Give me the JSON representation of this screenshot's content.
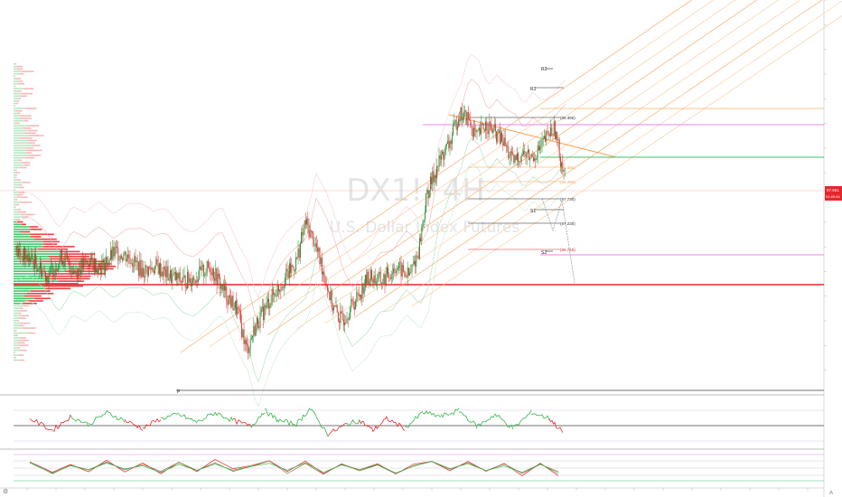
{
  "watermark": {
    "ticker": "DX1!, 4H",
    "name": "U.S. Dollar Index Futures"
  },
  "colors": {
    "up": "#1a8a2a",
    "down": "#e8262b",
    "channel": "#f7a35c",
    "magenta": "#e58ae6",
    "green_line": "#35c46a",
    "red_line": "#e5262b",
    "dark_line": "#222222"
  },
  "levels": {
    "ma1": "(99.365)",
    "ma2": "(98.555)",
    "ma3": "(98.280)",
    "ma4": "(97.730)",
    "ma5": "(97.230)",
    "ma6": "(96.715)",
    "r2": "R2",
    "r1": "R1",
    "s1": "S1",
    "s2": "S2",
    "p": "P"
  },
  "price_labels": {
    "current_price": "97.991",
    "current_time": "01:49:44"
  },
  "chart_data": [
    {
      "type": "line",
      "name": "price",
      "description_series": "4H candlesticks with anchored VWAP bands, volume profile, fib channel, pivot levels",
      "x_span": [
        0,
        620
      ],
      "y_range": [
        93.5,
        101.5
      ],
      "series": [
        {
          "name": "close",
          "points": [
            [
              0,
              96.4
            ],
            [
              20,
              96.2
            ],
            [
              35,
              95.9
            ],
            [
              50,
              96.3
            ],
            [
              65,
              96.0
            ],
            [
              80,
              96.2
            ],
            [
              95,
              96.1
            ],
            [
              110,
              96.4
            ],
            [
              125,
              96.3
            ],
            [
              140,
              96.0
            ],
            [
              155,
              96.1
            ],
            [
              170,
              95.9
            ],
            [
              185,
              95.8
            ],
            [
              200,
              95.9
            ],
            [
              215,
              96.1
            ],
            [
              230,
              95.6
            ],
            [
              245,
              95.2
            ],
            [
              255,
              94.4
            ],
            [
              265,
              94.9
            ],
            [
              280,
              95.4
            ],
            [
              295,
              95.8
            ],
            [
              310,
              96.2
            ],
            [
              320,
              97.0
            ],
            [
              330,
              96.6
            ],
            [
              340,
              96.0
            ],
            [
              350,
              95.3
            ],
            [
              360,
              95.0
            ],
            [
              375,
              95.4
            ],
            [
              390,
              95.9
            ],
            [
              405,
              95.8
            ],
            [
              420,
              96.1
            ],
            [
              435,
              95.9
            ],
            [
              445,
              96.4
            ],
            [
              455,
              97.6
            ],
            [
              470,
              98.3
            ],
            [
              480,
              98.6
            ],
            [
              490,
              99.2
            ],
            [
              500,
              99.1
            ],
            [
              510,
              98.7
            ],
            [
              520,
              99.0
            ],
            [
              530,
              98.8
            ],
            [
              540,
              98.6
            ],
            [
              550,
              98.2
            ],
            [
              560,
              98.4
            ],
            [
              570,
              98.3
            ],
            [
              580,
              98.5
            ],
            [
              590,
              98.8
            ],
            [
              596,
              98.9
            ],
            [
              602,
              98.3
            ],
            [
              608,
              97.99
            ]
          ]
        }
      ],
      "levels": [
        99.365,
        98.555,
        98.28,
        97.73,
        97.23,
        96.715
      ]
    },
    {
      "type": "line",
      "name": "oscillator-1",
      "series": [
        {
          "name": "osc",
          "points": [
            [
              15,
              0.2
            ],
            [
              40,
              -0.4
            ],
            [
              60,
              0.3
            ],
            [
              80,
              -0.1
            ],
            [
              100,
              0.5
            ],
            [
              120,
              0.1
            ],
            [
              140,
              -0.3
            ],
            [
              160,
              0.2
            ],
            [
              180,
              0.4
            ],
            [
              200,
              0.0
            ],
            [
              220,
              0.5
            ],
            [
              240,
              0.1
            ],
            [
              260,
              -0.2
            ],
            [
              275,
              0.6
            ],
            [
              290,
              0.1
            ],
            [
              310,
              -0.1
            ],
            [
              325,
              0.7
            ],
            [
              345,
              -0.6
            ],
            [
              365,
              -0.1
            ],
            [
              380,
              0.1
            ],
            [
              395,
              -0.4
            ],
            [
              410,
              0.2
            ],
            [
              430,
              -0.3
            ],
            [
              450,
              0.5
            ],
            [
              470,
              0.3
            ],
            [
              490,
              0.6
            ],
            [
              510,
              -0.2
            ],
            [
              530,
              0.4
            ],
            [
              550,
              -0.3
            ],
            [
              570,
              0.5
            ],
            [
              590,
              0.2
            ],
            [
              605,
              -0.5
            ]
          ]
        }
      ],
      "ylim": [
        -1,
        1
      ]
    },
    {
      "type": "line",
      "name": "oscillator-2",
      "series": [
        {
          "name": "osc2",
          "points": [
            [
              15,
              0.5
            ],
            [
              40,
              -0.5
            ],
            [
              60,
              0.4
            ],
            [
              80,
              -0.3
            ],
            [
              100,
              0.6
            ],
            [
              120,
              -0.2
            ],
            [
              140,
              0.3
            ],
            [
              160,
              -0.4
            ],
            [
              180,
              0.5
            ],
            [
              200,
              -0.3
            ],
            [
              220,
              0.6
            ],
            [
              240,
              -0.2
            ],
            [
              260,
              0.2
            ],
            [
              280,
              0.7
            ],
            [
              300,
              -0.4
            ],
            [
              320,
              0.6
            ],
            [
              340,
              -0.5
            ],
            [
              360,
              0.3
            ],
            [
              380,
              -0.2
            ],
            [
              400,
              0.4
            ],
            [
              420,
              -0.5
            ],
            [
              440,
              0.3
            ],
            [
              460,
              0.7
            ],
            [
              480,
              -0.1
            ],
            [
              500,
              0.5
            ],
            [
              520,
              -0.4
            ],
            [
              540,
              0.3
            ],
            [
              560,
              -0.6
            ],
            [
              580,
              0.4
            ],
            [
              600,
              -0.5
            ]
          ]
        }
      ],
      "ylim": [
        -1,
        1
      ]
    }
  ]
}
